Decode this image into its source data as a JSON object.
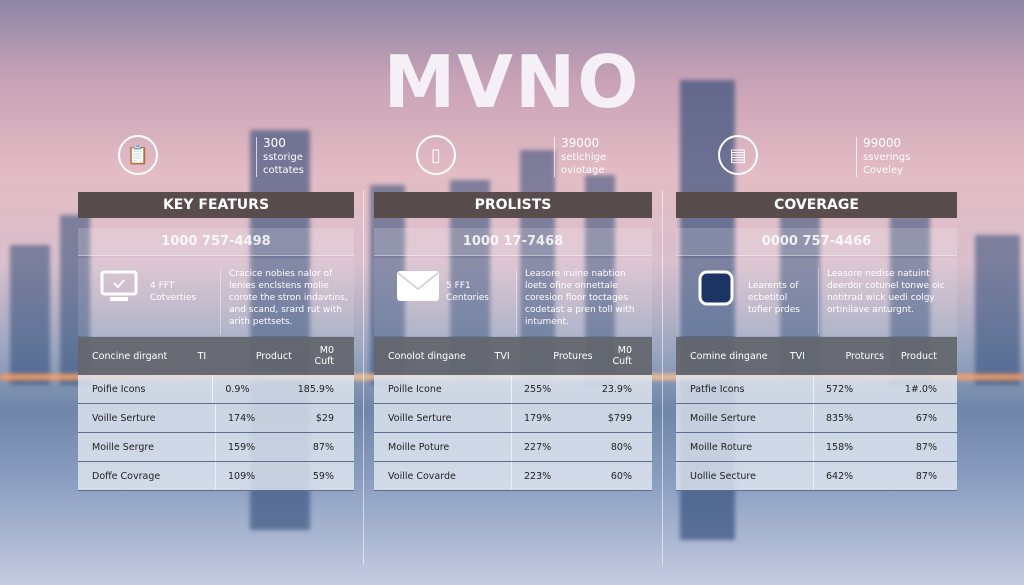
{
  "title": "MVNO",
  "colors": {
    "header_bar": "#594c4c",
    "table_header": "#64666c",
    "accent_glow": "#ff9a5a"
  },
  "columns": [
    {
      "icon": "clipboard-icon",
      "stat": [
        "300",
        "sstorige",
        "cottates"
      ],
      "header": "KEY FEATURS",
      "phone": "1000 757-4498",
      "feature_icon": "monitor-check-icon",
      "feature_label": [
        "4 FFT",
        "Cotverties"
      ],
      "feature_desc": "Cracice nobies nalor of lenies enclstens molie corote the stron indavtins, and scand, srard rut with arith pettsets.",
      "table": {
        "headers": [
          "Concine dirgant",
          "TI",
          "Product",
          "M0 Cuft"
        ],
        "rows": [
          [
            "Poifie Icons",
            "0.9%",
            "185.9%"
          ],
          [
            "Voille Serture",
            "174%",
            "$29"
          ],
          [
            "Moille Sergre",
            "159%",
            "87%"
          ],
          [
            "Doffe Covrage",
            "109%",
            "59%"
          ]
        ]
      }
    },
    {
      "icon": "smartphone-icon",
      "stat": [
        "39000",
        "setichige",
        "oviotage"
      ],
      "header": "PROLISTS",
      "phone": "1000 17-7468",
      "feature_icon": "envelope-icon",
      "feature_label": [
        "5 FF1",
        "Centories"
      ],
      "feature_desc": "Leasore iruine nabtion loets ofine onnettale coresion floor toctages codetast a pren toll with intument.",
      "table": {
        "headers": [
          "Conolot dingane",
          "TVI",
          "Protures",
          "M0 Cuft"
        ],
        "rows": [
          [
            "Poille Icone",
            "255%",
            "23.9%"
          ],
          [
            "Voille Serture",
            "179%",
            "$799"
          ],
          [
            "Moille Poture",
            "227%",
            "80%"
          ],
          [
            "Voille Covarde",
            "223%",
            "60%"
          ]
        ]
      }
    },
    {
      "icon": "document-icon",
      "stat": [
        "99000",
        "ssverings",
        "Coveley"
      ],
      "header": "COVERAGE",
      "phone": "0000 757-4466",
      "feature_icon": "rounded-square-icon",
      "feature_label": [
        "Learents of",
        "ecbetitol",
        "tofier prdes"
      ],
      "feature_desc": "Leasore nedise natuint deerdor cotunel tonwe oic notitrad wick uedi colgy ortinilave anturgnt.",
      "table": {
        "headers": [
          "Comine dingane",
          "TVI",
          "Proturcs",
          "Product"
        ],
        "rows": [
          [
            "Patfie Icons",
            "572%",
            "1#.0%"
          ],
          [
            "Moille Serture",
            "835%",
            "67%"
          ],
          [
            "Moille Roture",
            "158%",
            "87%"
          ],
          [
            "Uollie Secture",
            "642%",
            "87%"
          ]
        ]
      }
    }
  ]
}
